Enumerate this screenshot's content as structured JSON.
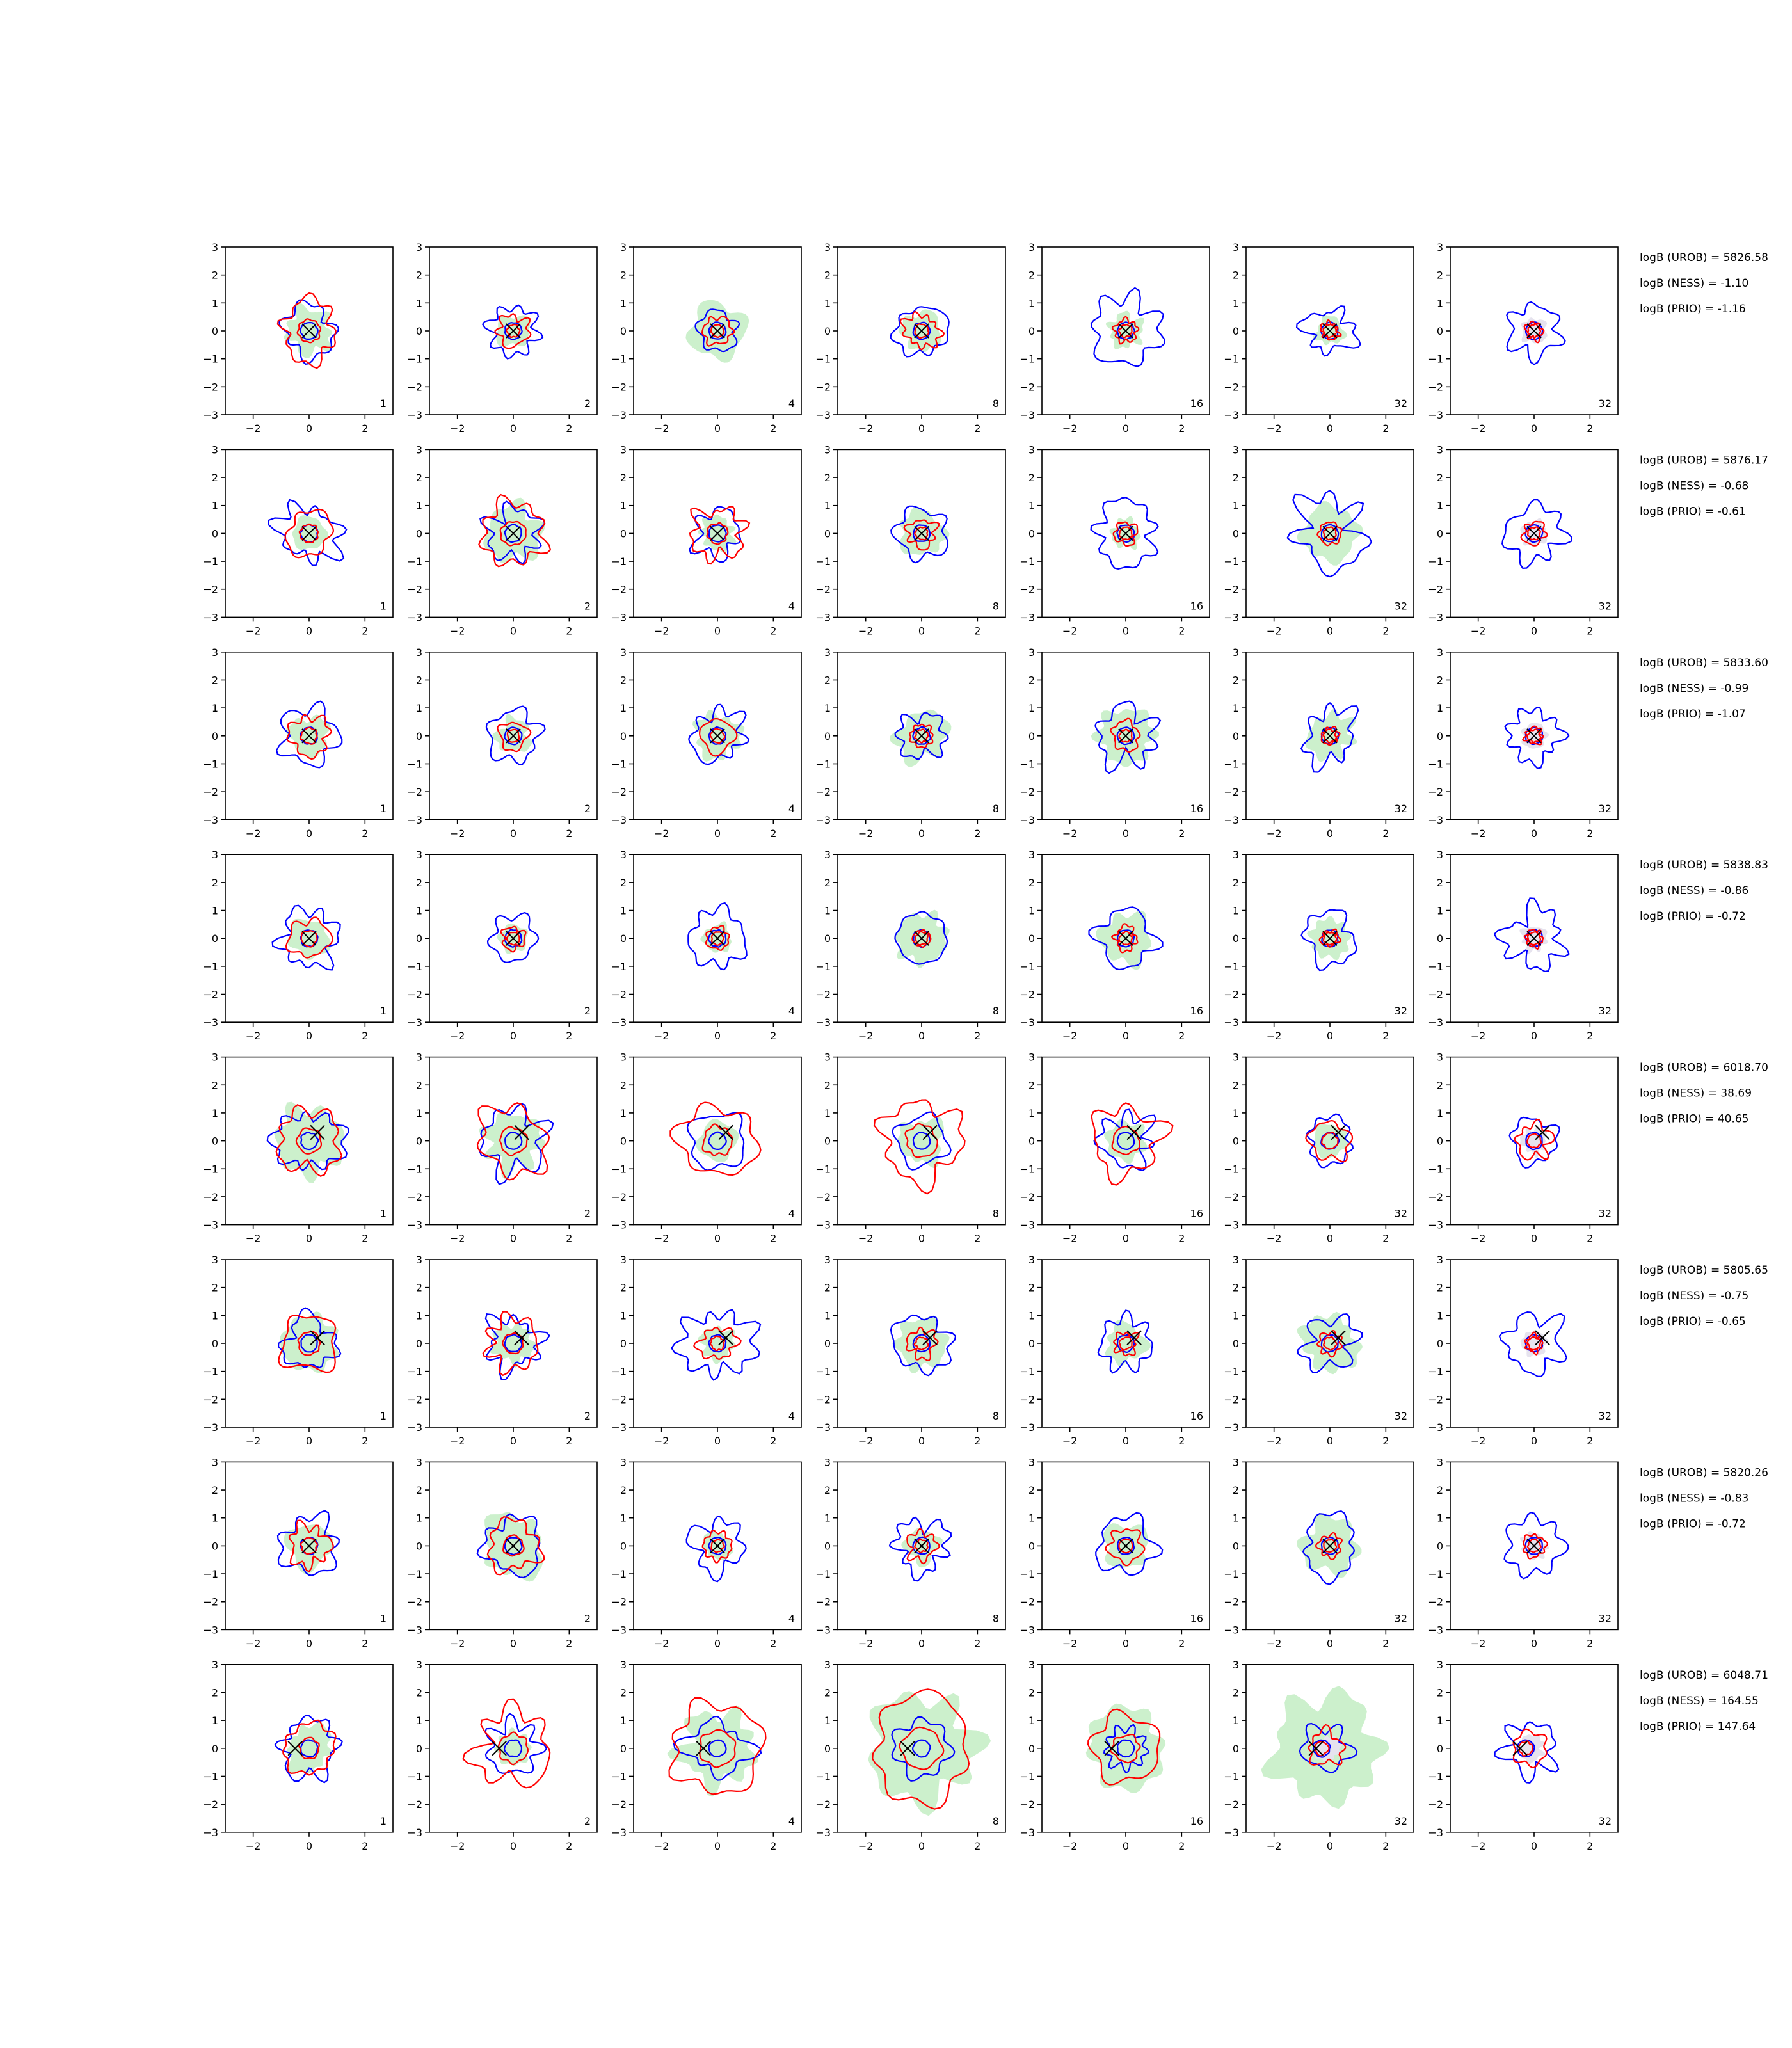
{
  "chart_data": {
    "type": "contour_grid",
    "rows": 8,
    "cols": 7,
    "xlim": [
      -3,
      3
    ],
    "ylim": [
      -3,
      3
    ],
    "xticks": [
      -2,
      0,
      2
    ],
    "yticks": [
      -3,
      -2,
      -1,
      0,
      1,
      2,
      3
    ],
    "xtick_labels": [
      "−2",
      "0",
      "2"
    ],
    "ytick_labels": [
      "−3",
      "−2",
      "−1",
      "0",
      "1",
      "2",
      "3"
    ],
    "panel_labels": [
      "1",
      "2",
      "4",
      "8",
      "16",
      "32",
      "32"
    ],
    "colors": {
      "red_contour": "#ff0000",
      "blue_contour": "#0000ff",
      "green_fill": "#ccf0cc",
      "grey_fill": "#e6e3ee",
      "marker": "#000000"
    },
    "rows_data": [
      {
        "stats": [
          "logB (UROB) = 5826.58",
          "logB (NESS) = -1.10",
          "logB (PRIO) = -1.16"
        ],
        "truth": [
          0.0,
          0.0
        ],
        "red_scales": [
          1.0,
          0.55,
          0.5,
          0.6,
          0.4,
          0.3,
          0.3
        ],
        "blue_scales": [
          0.9,
          0.85,
          0.7,
          0.9,
          1.2,
          0.8,
          0.9
        ],
        "green_scales": [
          0.8,
          0.6,
          1.0,
          0.7,
          0.6,
          0.5,
          0.0
        ],
        "offset_x": [
          0,
          0,
          0,
          0,
          0,
          0,
          0
        ]
      },
      {
        "stats": [
          "logB (UROB) = 5876.17",
          "logB (NESS) = -0.68",
          "logB (PRIO) = -0.61"
        ],
        "truth": [
          0.0,
          0.0
        ],
        "red_scales": [
          0.8,
          1.1,
          0.9,
          0.5,
          0.4,
          0.4,
          0.4
        ],
        "blue_scales": [
          1.0,
          0.9,
          0.8,
          0.9,
          1.1,
          1.2,
          1.0
        ],
        "green_scales": [
          0.6,
          1.0,
          0.6,
          0.8,
          0.5,
          1.0,
          0.0
        ],
        "offset_x": [
          0,
          0,
          0,
          0,
          0,
          0,
          0
        ]
      },
      {
        "stats": [
          "logB (UROB) = 5833.60",
          "logB (NESS) = -0.99",
          "logB (PRIO) = -1.07"
        ],
        "truth": [
          0.0,
          0.0
        ],
        "red_scales": [
          0.7,
          0.5,
          0.6,
          0.4,
          0.5,
          0.3,
          0.3
        ],
        "blue_scales": [
          1.0,
          0.9,
          0.9,
          0.8,
          1.0,
          0.9,
          0.9
        ],
        "green_scales": [
          0.7,
          0.6,
          0.8,
          0.9,
          1.0,
          0.8,
          0.0
        ],
        "offset_x": [
          0,
          0,
          0,
          0,
          0,
          0,
          0
        ]
      },
      {
        "stats": [
          "logB (UROB) = 5838.83",
          "logB (NESS) = -0.86",
          "logB (PRIO) = -0.72"
        ],
        "truth": [
          0.0,
          0.0
        ],
        "red_scales": [
          0.7,
          0.4,
          0.4,
          0.3,
          0.4,
          0.3,
          0.3
        ],
        "blue_scales": [
          1.0,
          0.8,
          1.0,
          0.9,
          1.0,
          0.9,
          1.0
        ],
        "green_scales": [
          0.7,
          0.5,
          0.5,
          0.9,
          0.9,
          0.7,
          0.0
        ],
        "offset_x": [
          0,
          0,
          0,
          0,
          0,
          0,
          0
        ]
      },
      {
        "stats": [
          "logB (UROB) = 6018.70",
          "logB (NESS) = 38.69",
          "logB (PRIO) = 40.65"
        ],
        "truth": [
          0.3,
          0.3
        ],
        "red_scales": [
          1.1,
          1.2,
          1.3,
          1.4,
          1.2,
          0.7,
          0.6
        ],
        "blue_scales": [
          1.1,
          1.1,
          1.0,
          0.9,
          0.9,
          0.8,
          0.8
        ],
        "green_scales": [
          1.2,
          1.0,
          0.7,
          0.8,
          0.7,
          0.6,
          0.0
        ],
        "offset_x": [
          0,
          0,
          0,
          0,
          0,
          0,
          0
        ]
      },
      {
        "stats": [
          "logB (UROB) = 5805.65",
          "logB (NESS) = -0.75",
          "logB (PRIO) = -0.65"
        ],
        "truth": [
          0.3,
          0.2
        ],
        "red_scales": [
          1.0,
          0.9,
          0.6,
          0.5,
          0.4,
          0.4,
          0.3
        ],
        "blue_scales": [
          0.9,
          0.9,
          1.2,
          1.0,
          0.9,
          0.9,
          1.0
        ],
        "green_scales": [
          1.0,
          0.7,
          0.6,
          0.9,
          0.7,
          1.0,
          0.0
        ],
        "offset_x": [
          0,
          0,
          0,
          0,
          0,
          0,
          0
        ]
      },
      {
        "stats": [
          "logB (UROB) = 5820.26",
          "logB (NESS) = -0.83",
          "logB (PRIO) = -0.72"
        ],
        "truth": [
          0.0,
          0.0
        ],
        "red_scales": [
          0.7,
          0.9,
          0.5,
          0.5,
          0.6,
          0.4,
          0.4
        ],
        "blue_scales": [
          1.0,
          1.0,
          0.9,
          0.9,
          1.0,
          1.0,
          1.0
        ],
        "green_scales": [
          0.8,
          1.1,
          0.5,
          0.6,
          0.8,
          1.0,
          0.0
        ],
        "offset_x": [
          0,
          0,
          0,
          0,
          0,
          0,
          0
        ]
      },
      {
        "stats": [
          "logB (UROB) = 6048.71",
          "logB (NESS) = 164.55",
          "logB (PRIO) = 147.64"
        ],
        "truth": [
          -0.5,
          0.0
        ],
        "red_scales": [
          0.9,
          1.3,
          1.6,
          1.8,
          1.2,
          0.6,
          0.6
        ],
        "blue_scales": [
          1.0,
          0.9,
          1.0,
          1.0,
          0.7,
          0.8,
          0.9
        ],
        "green_scales": [
          0.8,
          0.6,
          1.3,
          1.9,
          1.4,
          1.9,
          0.0
        ],
        "offset_x": [
          0,
          0,
          0,
          0,
          0,
          -0.3,
          -0.3
        ]
      }
    ]
  }
}
